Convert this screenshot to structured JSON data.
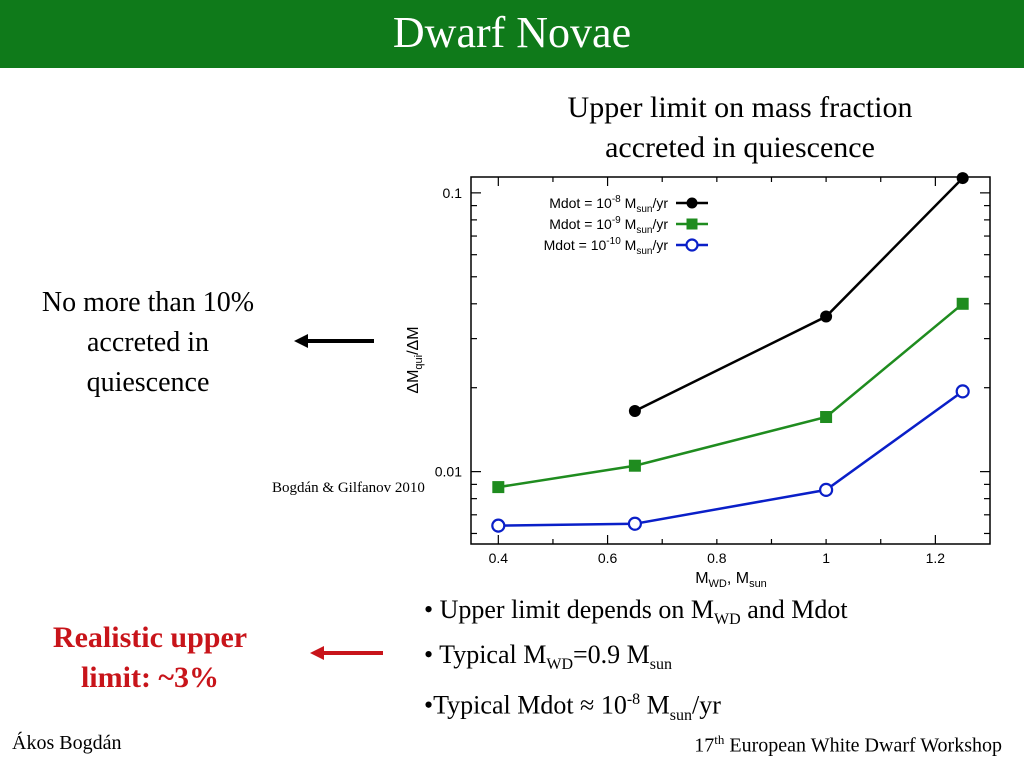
{
  "header": {
    "title": "Dwarf Novae"
  },
  "chart_title": {
    "line1": "Upper limit on mass fraction",
    "line2": "accreted in quiescence"
  },
  "side_note": {
    "line1": "No more than 10%",
    "line2": "accreted in",
    "line3": "quiescence"
  },
  "realistic": {
    "line1": "Realistic upper",
    "line2": "limit: ~3%"
  },
  "citation": "Bogdán & Gilfanov 2010",
  "bullets": [
    {
      "bullet": "•",
      "pre": "Upper limit depends on M",
      "sub": "WD",
      "post": " and Mdot"
    },
    {
      "bullet": "•",
      "pre": "Typical M",
      "sub": "WD",
      "mid": "=0.9 M",
      "sub2": "sun"
    },
    {
      "bullet": "•",
      "pre": "Typical Mdot ≈ 10",
      "sup": "-8",
      "mid": " M",
      "sub": "sun",
      "post": "/yr"
    }
  ],
  "footer": {
    "author": "Ákos Bogdán",
    "event_num": "17",
    "event_sup": "th",
    "event_rest": " European White Dwarf Workshop"
  },
  "colors": {
    "header_bg": "#0f7a1a",
    "highlight": "#c8141a",
    "series_black": "#000000",
    "series_green": "#1f8c1f",
    "series_blue": "#0a1fc8"
  },
  "chart_data": {
    "type": "line",
    "xlabel": "M",
    "xlabel_sub": "WD",
    "xlabel_rest": ", M",
    "xlabel_sub2": "sun",
    "ylabel": "ΔM",
    "ylabel_sub": "qui",
    "ylabel_rest": "/ΔM",
    "xlim": [
      0.35,
      1.3
    ],
    "ylim": [
      0.0055,
      0.114
    ],
    "yscale": "log",
    "x_ticks": [
      0.4,
      0.6,
      0.8,
      1,
      1.2
    ],
    "x_tick_labels": [
      "0.4",
      "0.6",
      "0.8",
      "1",
      "1.2"
    ],
    "y_ticks": [
      0.01,
      0.1
    ],
    "y_tick_labels": [
      "0.01",
      "0.1"
    ],
    "legend_position": "top-right",
    "series": [
      {
        "legend": {
          "pre": "Mdot = 10",
          "sup": "-8",
          "mid": " M",
          "sub": "sun",
          "post": "/yr"
        },
        "marker": "filled-circle",
        "color": "#000000",
        "x": [
          0.65,
          1.0,
          1.25
        ],
        "y": [
          0.0165,
          0.036,
          0.113
        ]
      },
      {
        "legend": {
          "pre": "Mdot = 10",
          "sup": "-9",
          "mid": " M",
          "sub": "sun",
          "post": "/yr"
        },
        "marker": "filled-square",
        "color": "#1f8c1f",
        "x": [
          0.4,
          0.65,
          1.0,
          1.25
        ],
        "y": [
          0.0088,
          0.0105,
          0.0157,
          0.04
        ]
      },
      {
        "legend": {
          "pre": "Mdot = 10",
          "sup": "-10",
          "mid": " M",
          "sub": "sun",
          "post": "/yr"
        },
        "marker": "open-circle",
        "color": "#0a1fc8",
        "x": [
          0.4,
          0.65,
          1.0,
          1.25
        ],
        "y": [
          0.0064,
          0.0065,
          0.0086,
          0.0194
        ]
      }
    ]
  }
}
